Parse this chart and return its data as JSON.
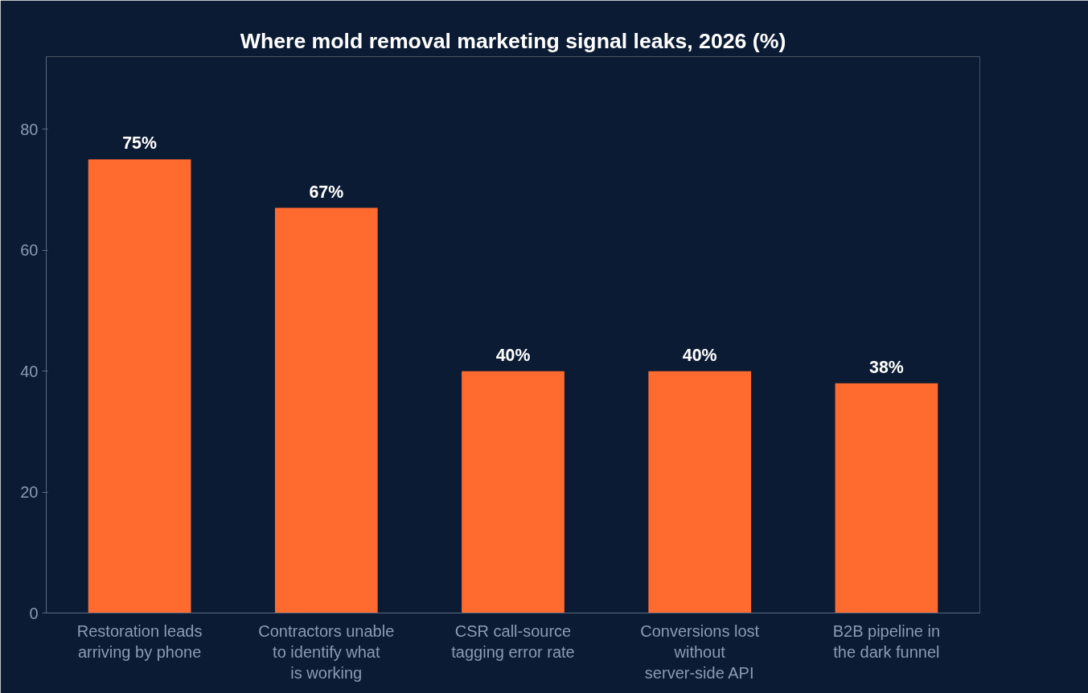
{
  "chart_data": {
    "type": "bar",
    "title": "Where mold removal marketing signal leaks, 2026 (%)",
    "categories": [
      "Restoration leads arriving by phone",
      "Contractors unable to identify what is working",
      "CSR call-source tagging error rate",
      "Conversions lost without server-side API",
      "B2B pipeline in the dark funnel"
    ],
    "values": [
      75,
      67,
      40,
      40,
      38
    ],
    "value_labels": [
      "75%",
      "67%",
      "40%",
      "40%",
      "38%"
    ],
    "color": "#ff6b2f",
    "ylim": [
      0,
      92
    ],
    "yticks": [
      0,
      20,
      40,
      60,
      80
    ],
    "grid": false
  }
}
